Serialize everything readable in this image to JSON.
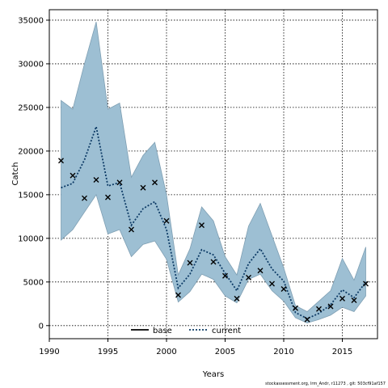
{
  "chart_data": {
    "type": "line",
    "xlabel": "Years",
    "ylabel": "Catch",
    "xlim": [
      1990,
      2018
    ],
    "ylim": [
      -1500,
      36200
    ],
    "xticks": [
      1990,
      1995,
      2000,
      2005,
      2010,
      2015
    ],
    "yticks": [
      0,
      5000,
      10000,
      15000,
      20000,
      25000,
      30000,
      35000
    ],
    "grid": true,
    "legend_position": "bottom-center",
    "legend": [
      {
        "label": "base",
        "style": "solid",
        "color": "#000000"
      },
      {
        "label": "current",
        "style": "dotted",
        "color": "#1f5f8b"
      }
    ],
    "colors": {
      "band": "#9dbfd3",
      "band_edge": "#7f9fb3",
      "current_line": "#0d3b66",
      "observed": "#000000"
    },
    "x": [
      1991,
      1992,
      1993,
      1994,
      1995,
      1996,
      1997,
      1998,
      1999,
      2000,
      2001,
      2002,
      2003,
      2004,
      2005,
      2006,
      2007,
      2008,
      2009,
      2010,
      2011,
      2012,
      2013,
      2014,
      2015,
      2016,
      2017
    ],
    "series": [
      {
        "name": "current",
        "values": [
          15800,
          16300,
          19000,
          22800,
          16000,
          16400,
          11500,
          13400,
          14200,
          11000,
          4300,
          5900,
          8700,
          8100,
          6000,
          4000,
          7100,
          8800,
          6500,
          5100,
          1500,
          800,
          1400,
          2400,
          4100,
          3200,
          5000
        ]
      },
      {
        "name": "upper",
        "values": [
          25800,
          24800,
          30000,
          34800,
          24800,
          25500,
          17000,
          19500,
          21000,
          15000,
          5800,
          8800,
          13600,
          12000,
          7900,
          5800,
          11400,
          14000,
          10300,
          6600,
          2300,
          1600,
          2800,
          4000,
          7700,
          5200,
          9000
        ]
      },
      {
        "name": "lower",
        "values": [
          9800,
          11000,
          13000,
          15000,
          10500,
          11000,
          7900,
          9300,
          9700,
          7600,
          2700,
          3900,
          5900,
          5300,
          3400,
          2600,
          5300,
          5900,
          4000,
          2800,
          900,
          300,
          700,
          1200,
          2100,
          1600,
          3400
        ]
      },
      {
        "name": "observed",
        "values": [
          18900,
          17200,
          14600,
          16700,
          14700,
          16400,
          11000,
          15800,
          16400,
          12000,
          3500,
          7200,
          11500,
          7300,
          5700,
          3100,
          5500,
          6300,
          4800,
          4200,
          2000,
          700,
          1900,
          2200,
          3100,
          2900,
          4800
        ]
      }
    ]
  },
  "footer_text": "stockassessment.org, lrm_Andr, r11273 , git: 503cf91af157"
}
